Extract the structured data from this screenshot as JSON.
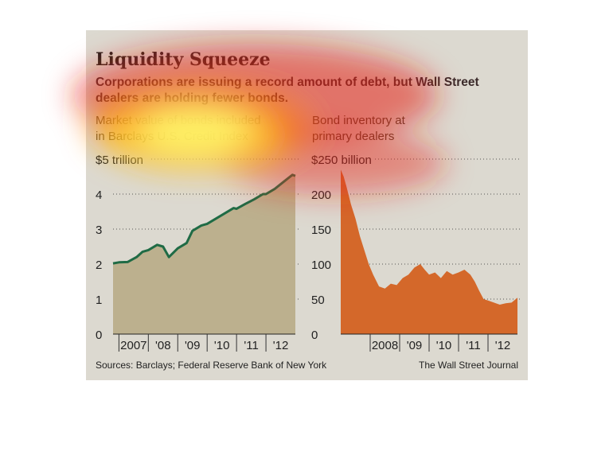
{
  "header": {
    "title": "Liquidity Squeeze",
    "subtitle": "Corporations are issuing a record amount of debt, but Wall Street dealers are holding fewer bonds."
  },
  "footer": {
    "source": "Sources: Barclays; Federal Reserve Bank of New York",
    "credit": "The Wall Street Journal"
  },
  "colors": {
    "background": "#dcd9d0",
    "left_line": "#1f6b45",
    "left_fill": "#bcb08e",
    "right_fill": "#d4682a"
  },
  "chart_data": [
    {
      "type": "area",
      "title_lines": [
        "Market value of bonds included",
        "in Barclays U.S. Credit Index"
      ],
      "y_unit_label": "$5 trillion",
      "ylim": [
        0,
        5
      ],
      "yticks": [
        0,
        1,
        2,
        3,
        4
      ],
      "xlim": [
        2006.8,
        2013.0
      ],
      "xticks": [
        {
          "label": "2007",
          "pos": 2007.0
        },
        {
          "label": "'08",
          "pos": 2008.0
        },
        {
          "label": "'09",
          "pos": 2009.0
        },
        {
          "label": "'10",
          "pos": 2010.0
        },
        {
          "label": "'11",
          "pos": 2011.0
        },
        {
          "label": "'12",
          "pos": 2012.0
        }
      ],
      "series": [
        {
          "x": [
            2006.8,
            2007.0,
            2007.3,
            2007.6,
            2007.8,
            2008.0,
            2008.3,
            2008.5,
            2008.7,
            2009.0,
            2009.3,
            2009.5,
            2009.8,
            2010.0,
            2010.3,
            2010.6,
            2010.9,
            2011.0,
            2011.3,
            2011.6,
            2011.9,
            2012.0,
            2012.3,
            2012.6,
            2012.9,
            2013.0
          ],
          "y": [
            2.02,
            2.05,
            2.06,
            2.2,
            2.35,
            2.4,
            2.55,
            2.5,
            2.2,
            2.45,
            2.6,
            2.95,
            3.1,
            3.15,
            3.3,
            3.45,
            3.6,
            3.58,
            3.72,
            3.85,
            4.0,
            4.0,
            4.15,
            4.35,
            4.55,
            4.52
          ]
        }
      ]
    },
    {
      "type": "area",
      "title_lines": [
        "Bond inventory at",
        "primary dealers"
      ],
      "y_unit_label": "$250 billion",
      "ylim": [
        0,
        250
      ],
      "yticks": [
        0,
        50,
        100,
        150,
        200
      ],
      "xlim": [
        2007.0,
        2013.0
      ],
      "xticks": [
        {
          "label": "2008",
          "pos": 2008.0
        },
        {
          "label": "'09",
          "pos": 2009.0
        },
        {
          "label": "'10",
          "pos": 2010.0
        },
        {
          "label": "'11",
          "pos": 2011.0
        },
        {
          "label": "'12",
          "pos": 2012.0
        }
      ],
      "series": [
        {
          "x": [
            2007.0,
            2007.1,
            2007.2,
            2007.35,
            2007.5,
            2007.65,
            2007.8,
            2007.95,
            2008.1,
            2008.3,
            2008.5,
            2008.7,
            2008.9,
            2009.1,
            2009.3,
            2009.5,
            2009.7,
            2009.85,
            2010.0,
            2010.2,
            2010.4,
            2010.6,
            2010.8,
            2011.0,
            2011.2,
            2011.4,
            2011.55,
            2011.7,
            2011.85,
            2012.0,
            2012.2,
            2012.4,
            2012.6,
            2012.8,
            2013.0
          ],
          "y": [
            235,
            225,
            210,
            185,
            165,
            140,
            120,
            100,
            85,
            68,
            65,
            72,
            70,
            80,
            85,
            95,
            100,
            92,
            85,
            88,
            80,
            90,
            85,
            88,
            92,
            85,
            75,
            62,
            50,
            48,
            45,
            42,
            44,
            45,
            52
          ]
        }
      ]
    }
  ]
}
